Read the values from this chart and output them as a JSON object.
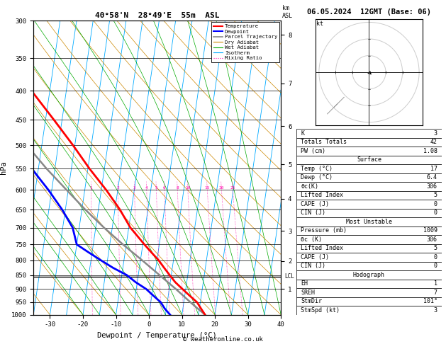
{
  "title_left": "40°58'N  28°49'E  55m  ASL",
  "title_right": "06.05.2024  12GMT (Base: 06)",
  "xlabel": "Dewpoint / Temperature (°C)",
  "ylabel_left": "hPa",
  "skew_factor": -25,
  "pressure_ticks": [
    300,
    350,
    400,
    450,
    500,
    550,
    600,
    650,
    700,
    750,
    800,
    850,
    900,
    950,
    1000
  ],
  "temp_range": [
    -35,
    40
  ],
  "km_ticks": [
    1,
    2,
    3,
    4,
    5,
    6,
    7,
    8
  ],
  "km_pressures": [
    900,
    802,
    710,
    622,
    540,
    462,
    388,
    318
  ],
  "lcl_pressure": 855,
  "mixing_ratio_values": [
    1,
    2,
    3,
    4,
    5,
    6,
    8,
    10,
    15,
    20,
    25
  ],
  "isotherm_temps": [
    -40,
    -35,
    -30,
    -25,
    -20,
    -15,
    -10,
    -5,
    0,
    5,
    10,
    15,
    20,
    25,
    30,
    35,
    40,
    45,
    50
  ],
  "dry_adiabat_thetas": [
    -30,
    -20,
    -10,
    0,
    10,
    20,
    30,
    40,
    50,
    60,
    70,
    80,
    90,
    100,
    110,
    120,
    130,
    140,
    150,
    160,
    170,
    180
  ],
  "wet_adiabat_starts": [
    -20,
    -15,
    -10,
    -5,
    0,
    5,
    10,
    15,
    20,
    25,
    30,
    35,
    40
  ],
  "temperature_profile_p": [
    1000,
    975,
    950,
    925,
    900,
    875,
    850,
    825,
    800,
    775,
    750,
    700,
    650,
    600,
    550,
    500,
    450,
    400,
    350,
    300
  ],
  "temperature_profile_t": [
    17,
    15.5,
    14,
    11.5,
    9,
    6.5,
    4.5,
    2.5,
    0.5,
    -2,
    -4.5,
    -9.5,
    -13.5,
    -18.5,
    -24.5,
    -30.5,
    -37.5,
    -45.5,
    -54.0,
    -61.5
  ],
  "dewpoint_profile_p": [
    1000,
    975,
    950,
    925,
    900,
    875,
    850,
    825,
    800,
    775,
    750,
    700,
    650,
    600,
    550,
    500,
    450,
    400,
    350,
    300
  ],
  "dewpoint_profile_t": [
    6.4,
    4.5,
    3.0,
    0.5,
    -2.0,
    -5.5,
    -8.5,
    -13.0,
    -17.0,
    -21.0,
    -25.0,
    -27.0,
    -31.0,
    -36.0,
    -42.0,
    -48.0,
    -53.0,
    -59.0,
    -65.0,
    -70.0
  ],
  "parcel_profile_p": [
    1000,
    975,
    950,
    900,
    855,
    800,
    750,
    700,
    650,
    600,
    550,
    500,
    450,
    400,
    350,
    300
  ],
  "parcel_profile_t": [
    17,
    14.5,
    12.0,
    7.0,
    2.0,
    -4.5,
    -11.0,
    -17.5,
    -24.0,
    -30.5,
    -37.5,
    -44.5,
    -52.0,
    -59.5,
    -67.0,
    -74.0
  ],
  "isotherm_color": "#00aaff",
  "dry_adiabat_color": "#cc8800",
  "wet_adiabat_color": "#00aa00",
  "mixing_ratio_color": "#ff00aa",
  "temp_color": "#ff0000",
  "dewp_color": "#0000ff",
  "parcel_color": "#888888",
  "stats_rows": [
    {
      "label": "K",
      "value": "3",
      "header": false
    },
    {
      "label": "Totals Totals",
      "value": "42",
      "header": false
    },
    {
      "label": "PW (cm)",
      "value": "1.08",
      "header": false
    },
    {
      "label": "Surface",
      "value": "",
      "header": true
    },
    {
      "label": "Temp (°C)",
      "value": "17",
      "header": false
    },
    {
      "label": "Dewp (°C)",
      "value": "6.4",
      "header": false
    },
    {
      "label": "θc(K)",
      "value": "306",
      "header": false
    },
    {
      "label": "Lifted Index",
      "value": "5",
      "header": false
    },
    {
      "label": "CAPE (J)",
      "value": "0",
      "header": false
    },
    {
      "label": "CIN (J)",
      "value": "0",
      "header": false
    },
    {
      "label": "Most Unstable",
      "value": "",
      "header": true
    },
    {
      "label": "Pressure (mb)",
      "value": "1009",
      "header": false
    },
    {
      "label": "θc (K)",
      "value": "306",
      "header": false
    },
    {
      "label": "Lifted Index",
      "value": "5",
      "header": false
    },
    {
      "label": "CAPE (J)",
      "value": "0",
      "header": false
    },
    {
      "label": "CIN (J)",
      "value": "0",
      "header": false
    },
    {
      "label": "Hodograph",
      "value": "",
      "header": true
    },
    {
      "label": "EH",
      "value": "1",
      "header": false
    },
    {
      "label": "SREH",
      "value": "7",
      "header": false
    },
    {
      "label": "StmDir",
      "value": "101°",
      "header": false
    },
    {
      "label": "StmSpd (kt)",
      "value": "3",
      "header": false
    }
  ],
  "copyright": "© weatheronline.co.uk"
}
